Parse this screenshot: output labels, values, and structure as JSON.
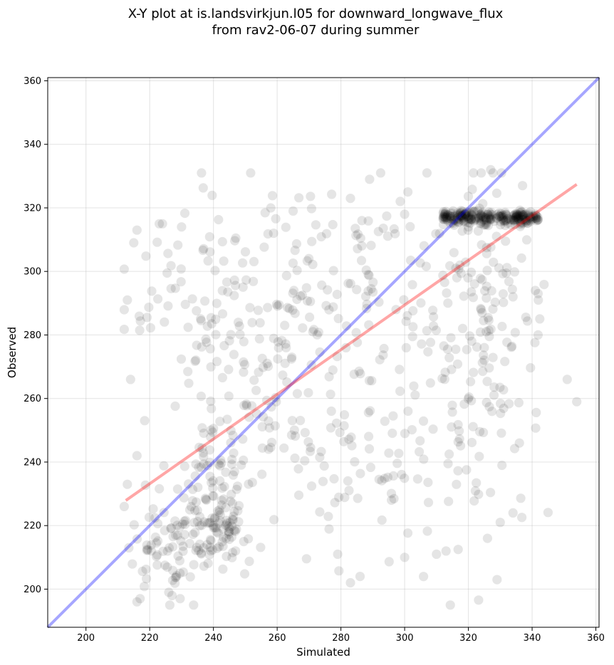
{
  "chart_data": {
    "type": "scatter",
    "title_line1": "X-Y plot at is.landsvirkjun.l05 for downward_longwave_flux",
    "title_line2": "from rav2-06-07 during summer",
    "xlabel": "Simulated",
    "ylabel": "Observed",
    "xlim": [
      188,
      361
    ],
    "ylim": [
      188,
      361
    ],
    "xticks": [
      200,
      220,
      240,
      260,
      280,
      300,
      320,
      340,
      360
    ],
    "yticks": [
      200,
      220,
      240,
      260,
      280,
      300,
      320,
      340,
      360
    ],
    "grid": true,
    "point_color": "#000000",
    "point_alpha": 0.1,
    "identity_line": {
      "color": "#0000ff",
      "alpha": 0.35,
      "x": [
        188,
        361
      ],
      "y": [
        188,
        361
      ]
    },
    "fit_line": {
      "color": "#ff0000",
      "alpha": 0.35,
      "x": [
        212.5,
        354
      ],
      "y": [
        227.9,
        327.4
      ]
    },
    "clusters": [
      {
        "cx": 241,
        "cy": 219,
        "sx": 5,
        "sy": 6,
        "n": 80
      },
      {
        "cx": 226,
        "cy": 214,
        "sx": 6,
        "sy": 9,
        "n": 70
      },
      {
        "cx": 240,
        "cy": 236,
        "sx": 6,
        "sy": 9,
        "n": 60
      },
      {
        "cx": 248,
        "cy": 290,
        "sx": 16,
        "sy": 19,
        "n": 90
      },
      {
        "cx": 285,
        "cy": 300,
        "sx": 15,
        "sy": 15,
        "n": 90
      },
      {
        "cx": 262,
        "cy": 255,
        "sx": 15,
        "sy": 16,
        "n": 70
      },
      {
        "cx": 292,
        "cy": 243,
        "sx": 15,
        "sy": 16,
        "n": 70
      },
      {
        "cx": 325,
        "cy": 290,
        "sx": 9,
        "sy": 18,
        "n": 120
      },
      {
        "cx": 325,
        "cy": 248,
        "sx": 8,
        "sy": 17,
        "n": 45
      },
      {
        "cx": 232,
        "cy": 290,
        "sx": 10,
        "sy": 14,
        "n": 40
      }
    ],
    "dense_band": {
      "x": [
        312,
        342
      ],
      "y": 317,
      "sy": 1.1,
      "n": 260
    },
    "points": [
      [
        241,
        218
      ],
      [
        243,
        219
      ],
      [
        239,
        221
      ],
      [
        244,
        216
      ],
      [
        238,
        214
      ],
      [
        246,
        222
      ],
      [
        216,
        196
      ],
      [
        217,
        197
      ],
      [
        226,
        199
      ],
      [
        227,
        198
      ],
      [
        216,
        313
      ],
      [
        215,
        309
      ],
      [
        224,
        315
      ],
      [
        230,
        314
      ],
      [
        258,
        320
      ],
      [
        265,
        319
      ],
      [
        300,
        318
      ],
      [
        307,
        331
      ],
      [
        327,
        332
      ],
      [
        289,
        329
      ],
      [
        301,
        325
      ],
      [
        320,
        314
      ],
      [
        351,
        266
      ],
      [
        354,
        259
      ],
      [
        334,
        292
      ],
      [
        341,
        294
      ],
      [
        336,
        246
      ],
      [
        329,
        203
      ],
      [
        313,
        212
      ],
      [
        310,
        211
      ],
      [
        300,
        210
      ],
      [
        279,
        211
      ],
      [
        286,
        204
      ],
      [
        283,
        202
      ],
      [
        334,
        224
      ],
      [
        330,
        221
      ],
      [
        326,
        216
      ],
      [
        214,
        266
      ],
      [
        213,
        291
      ],
      [
        212,
        226
      ],
      [
        213,
        233
      ],
      [
        223,
        315
      ],
      [
        283,
        323
      ],
      [
        337,
        327
      ],
      [
        216,
        242
      ]
    ]
  }
}
